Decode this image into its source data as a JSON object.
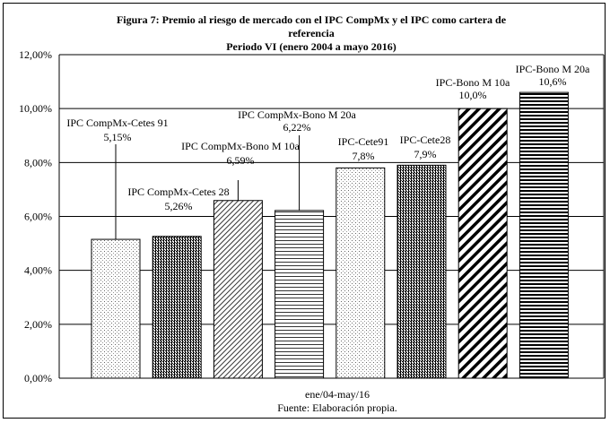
{
  "chart_data": {
    "type": "bar",
    "title_lines": [
      "Figura 7: Premio al riesgo de mercado con el IPC CompMx  y el IPC como cartera de",
      "referencia",
      "Periodo VI (enero 2004 a mayo 2016)"
    ],
    "xlabel": "ene/04-may/16",
    "source": "Fuente: Elaboración propia.",
    "ylim": [
      0,
      12
    ],
    "yticks": [
      "0,00%",
      "2,00%",
      "4,00%",
      "6,00%",
      "8,00%",
      "10,00%",
      "12,00%"
    ],
    "grid": true,
    "series": [
      {
        "name": "IPC CompMx-Cetes 91",
        "value": 5.15,
        "label": "5,15%",
        "pattern": "dots-light"
      },
      {
        "name": "IPC CompMx-Cetes 28",
        "value": 5.26,
        "label": "5,26%",
        "pattern": "dots-dark"
      },
      {
        "name": "IPC CompMx-Bono M 10a",
        "value": 6.59,
        "label": "6,59%",
        "pattern": "diag-thin"
      },
      {
        "name": "IPC CompMx-Bono M 20a",
        "value": 6.22,
        "label": "6,22%",
        "pattern": "horiz-thin"
      },
      {
        "name": "IPC-Cete91",
        "value": 7.8,
        "label": "7,8%",
        "pattern": "dots-light"
      },
      {
        "name": "IPC-Cete28",
        "value": 7.9,
        "label": "7,9%",
        "pattern": "dots-dark"
      },
      {
        "name": "IPC-Bono M 10a",
        "value": 10.0,
        "label": "10,0%",
        "pattern": "diag-thick"
      },
      {
        "name": "IPC-Bono M 20a",
        "value": 10.6,
        "label": "10,6%",
        "pattern": "horiz-thick"
      }
    ]
  }
}
